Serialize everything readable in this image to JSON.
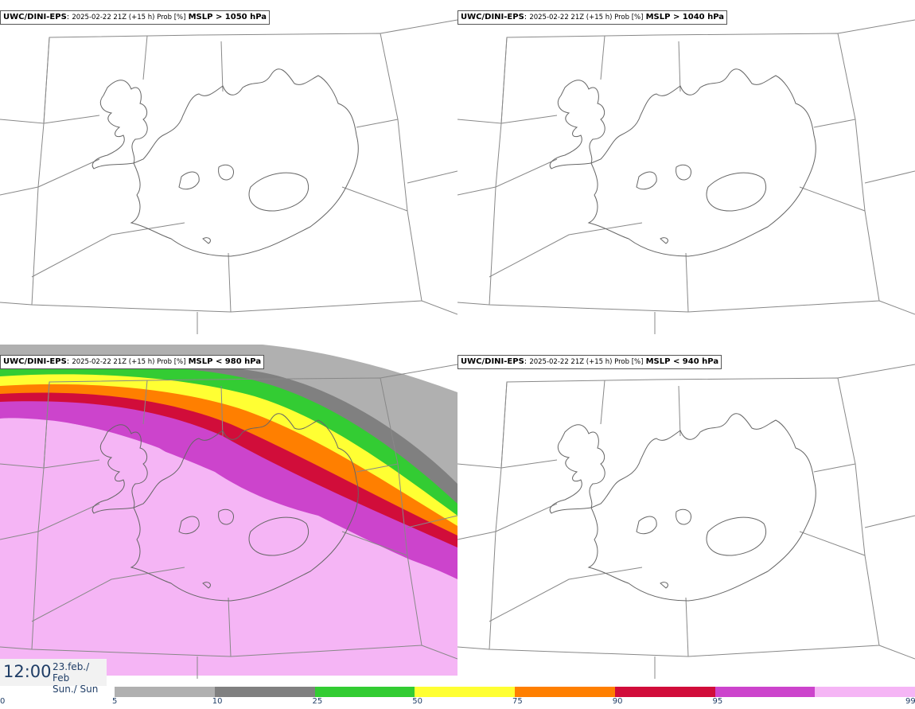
{
  "panels": [
    {
      "model": "UWC/DINI-EPS",
      "run": "2025-02-22 21Z (+15 h) Prob [%]",
      "threshold": "MSLP > 1050 hPa"
    },
    {
      "model": "UWC/DINI-EPS",
      "run": "2025-02-22 21Z (+15 h) Prob [%]",
      "threshold": "MSLP > 1040 hPa"
    },
    {
      "model": "UWC/DINI-EPS",
      "run": "2025-02-22 21Z (+15 h) Prob [%]",
      "threshold": "MSLP < 980 hPa"
    },
    {
      "model": "UWC/DINI-EPS",
      "run": "2025-02-22 21Z (+15 h) Prob [%]",
      "threshold": "MSLP < 940 hPa"
    }
  ],
  "valid_time": {
    "time": "12:00",
    "date_line1": "23.feb./ Feb",
    "date_line2": "Sun./ Sun"
  },
  "colorbar": {
    "ticks": [
      "0",
      "5",
      "10",
      "25",
      "50",
      "75",
      "90",
      "95",
      "99"
    ],
    "colors": [
      "#b0b0b0",
      "#808080",
      "#33cc33",
      "#ffff33",
      "#ff7f00",
      "#d10d3a",
      "#cc44cc",
      "#f5b5f5"
    ]
  },
  "map_colors": {
    "coast": "#666666",
    "grid": "#888888"
  }
}
